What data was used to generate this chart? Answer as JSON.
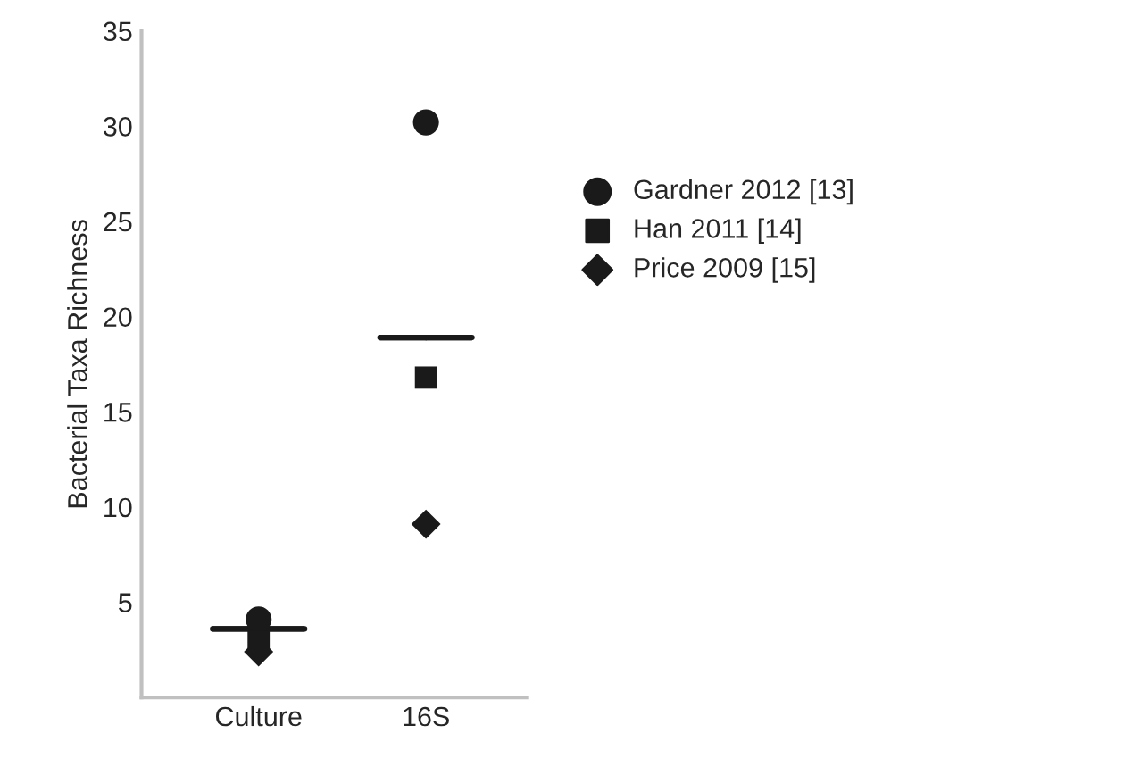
{
  "chart_data": {
    "type": "scatter",
    "ylabel": "Bacterial Taxa Richness",
    "categories": [
      "Culture",
      "16S"
    ],
    "ylim": [
      0,
      35
    ],
    "yticks": [
      5,
      10,
      15,
      20,
      25,
      30,
      35
    ],
    "grid": false,
    "legend": "right",
    "series": [
      {
        "name": "Gardner 2012 [13]",
        "color": "#1a1a1a",
        "marker": "circle",
        "values": [
          4.1,
          30.2
        ]
      },
      {
        "name": "Han 2011 [14]",
        "color": "#1a1a1a",
        "marker": "square",
        "values": [
          2.9,
          16.8
        ]
      },
      {
        "name": "Price 2009 [15]",
        "color": "#1a1a1a",
        "marker": "diamond",
        "values": [
          2.4,
          9.1
        ]
      },
      {
        "type": "box",
        "color": "#1a1a1a",
        "boxes": [
          {
            "low": 3.6,
            "q1": 3.6,
            "median": 3.6,
            "q3": 3.6,
            "high": 3.6
          },
          {
            "low": 18.9,
            "q1": 18.9,
            "median": 18.9,
            "q3": 18.9,
            "high": 18.9
          }
        ]
      }
    ]
  }
}
